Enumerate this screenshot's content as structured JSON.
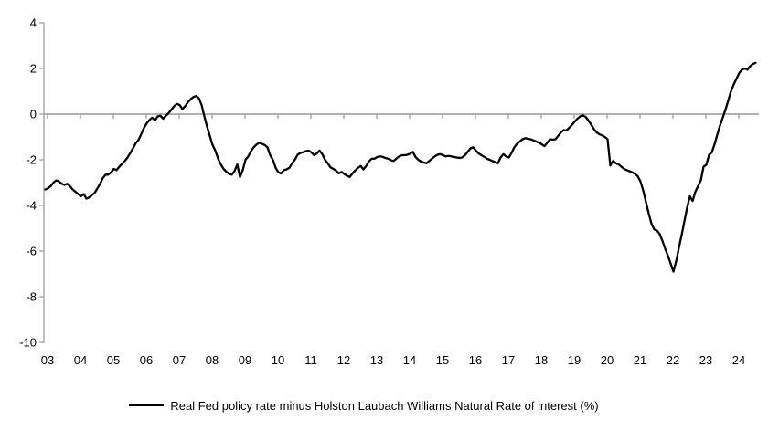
{
  "chart_data": {
    "type": "line",
    "title": "",
    "xlabel": "",
    "ylabel": "",
    "ylim": [
      -10,
      4
    ],
    "grid": "zero-line-only",
    "legend_position": "bottom-center",
    "axis_color": "#A6A6A6",
    "text_color": "#000000",
    "x_tick_labels": [
      "03",
      "04",
      "05",
      "06",
      "07",
      "08",
      "09",
      "10",
      "11",
      "12",
      "13",
      "14",
      "15",
      "16",
      "17",
      "18",
      "19",
      "20",
      "21",
      "22",
      "23",
      "24"
    ],
    "y_tick_labels": [
      "4",
      "2",
      "0",
      "-2",
      "-4",
      "-6",
      "-8",
      "-10"
    ],
    "y_tick_values": [
      4,
      2,
      0,
      -2,
      -4,
      -6,
      -8,
      -10
    ],
    "x_start_year": 2003,
    "points_per_year": 12,
    "x_end_label": "24",
    "series": [
      {
        "name": "Real Fed policy rate minus Holston Laubach Williams Natural Rate of interest (%)",
        "color": "#000000",
        "values": [
          -3.3,
          -3.25,
          -3.15,
          -3.0,
          -2.9,
          -2.95,
          -3.05,
          -3.1,
          -3.05,
          -3.15,
          -3.3,
          -3.4,
          -3.5,
          -3.6,
          -3.5,
          -3.7,
          -3.65,
          -3.55,
          -3.45,
          -3.25,
          -3.05,
          -2.8,
          -2.65,
          -2.65,
          -2.55,
          -2.4,
          -2.45,
          -2.3,
          -2.18,
          -2.05,
          -1.9,
          -1.7,
          -1.5,
          -1.27,
          -1.13,
          -0.87,
          -0.6,
          -0.4,
          -0.25,
          -0.15,
          -0.27,
          -0.1,
          -0.07,
          -0.2,
          -0.07,
          0.05,
          0.2,
          0.35,
          0.45,
          0.4,
          0.22,
          0.35,
          0.52,
          0.65,
          0.75,
          0.8,
          0.7,
          0.4,
          -0.1,
          -0.55,
          -0.95,
          -1.35,
          -1.6,
          -1.95,
          -2.2,
          -2.4,
          -2.52,
          -2.62,
          -2.65,
          -2.5,
          -2.2,
          -2.75,
          -2.45,
          -2.0,
          -1.85,
          -1.62,
          -1.45,
          -1.33,
          -1.25,
          -1.3,
          -1.35,
          -1.45,
          -1.8,
          -2.0,
          -2.35,
          -2.55,
          -2.6,
          -2.45,
          -2.42,
          -2.35,
          -2.15,
          -2.0,
          -1.78,
          -1.7,
          -1.67,
          -1.62,
          -1.6,
          -1.67,
          -1.8,
          -1.72,
          -1.6,
          -1.75,
          -2.0,
          -2.15,
          -2.33,
          -2.4,
          -2.47,
          -2.6,
          -2.53,
          -2.62,
          -2.7,
          -2.75,
          -2.6,
          -2.47,
          -2.35,
          -2.27,
          -2.42,
          -2.27,
          -2.07,
          -1.95,
          -1.95,
          -1.88,
          -1.85,
          -1.87,
          -1.92,
          -1.95,
          -2.02,
          -2.05,
          -1.95,
          -1.85,
          -1.8,
          -1.8,
          -1.78,
          -1.73,
          -1.65,
          -1.88,
          -2.0,
          -2.08,
          -2.12,
          -2.15,
          -2.05,
          -1.95,
          -1.85,
          -1.78,
          -1.75,
          -1.8,
          -1.85,
          -1.83,
          -1.85,
          -1.88,
          -1.9,
          -1.92,
          -1.9,
          -1.8,
          -1.65,
          -1.5,
          -1.45,
          -1.6,
          -1.72,
          -1.8,
          -1.87,
          -1.95,
          -2.0,
          -2.05,
          -2.1,
          -2.15,
          -1.9,
          -1.75,
          -1.85,
          -1.9,
          -1.7,
          -1.45,
          -1.3,
          -1.2,
          -1.1,
          -1.05,
          -1.08,
          -1.1,
          -1.15,
          -1.2,
          -1.25,
          -1.32,
          -1.4,
          -1.25,
          -1.1,
          -1.12,
          -1.1,
          -0.95,
          -0.8,
          -0.7,
          -0.72,
          -0.6,
          -0.47,
          -0.33,
          -0.2,
          -0.1,
          -0.05,
          -0.12,
          -0.28,
          -0.45,
          -0.65,
          -0.8,
          -0.88,
          -0.93,
          -1.0,
          -1.1,
          -2.25,
          -2.05,
          -2.15,
          -2.2,
          -2.3,
          -2.4,
          -2.45,
          -2.5,
          -2.55,
          -2.62,
          -2.72,
          -2.95,
          -3.35,
          -3.85,
          -4.35,
          -4.8,
          -5.05,
          -5.1,
          -5.25,
          -5.55,
          -5.9,
          -6.2,
          -6.55,
          -6.9,
          -6.45,
          -5.85,
          -5.3,
          -4.7,
          -4.1,
          -3.6,
          -3.8,
          -3.4,
          -3.15,
          -2.9,
          -2.3,
          -2.22,
          -1.78,
          -1.68,
          -1.32,
          -0.9,
          -0.5,
          -0.15,
          0.2,
          0.6,
          1.0,
          1.3,
          1.55,
          1.8,
          1.95,
          2.0,
          1.95,
          2.1,
          2.2,
          2.25
        ]
      }
    ]
  },
  "legend": {
    "label": "Real Fed policy rate minus Holston Laubach Williams Natural Rate of interest (%)"
  }
}
